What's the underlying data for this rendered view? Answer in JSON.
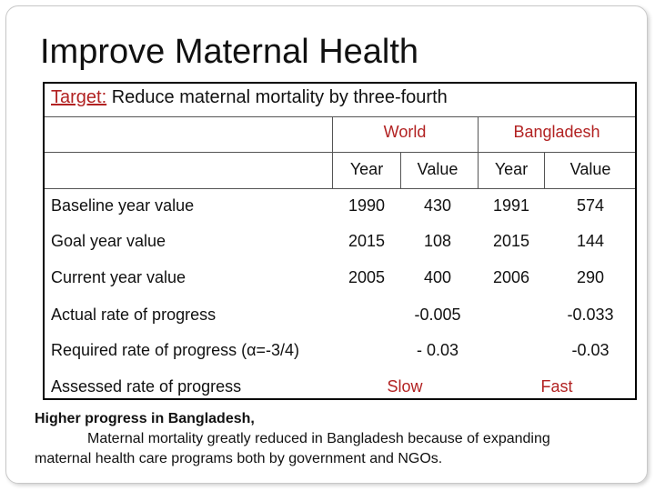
{
  "title": "Improve Maternal Health",
  "target": {
    "label": "Target:",
    "text": " Reduce maternal mortality by three-fourth"
  },
  "columns": {
    "world": "World",
    "bangladesh": "Bangladesh",
    "year": "Year",
    "value": "Value"
  },
  "rows": [
    {
      "label": "Baseline year value",
      "w_year": "1990",
      "w_value": "430",
      "b_year": "1991",
      "b_value": "574"
    },
    {
      "label": "Goal year value",
      "w_year": "2015",
      "w_value": "108",
      "b_year": "2015",
      "b_value": "144"
    },
    {
      "label": "Current year value",
      "w_year": "2005",
      "w_value": "400",
      "b_year": "2006",
      "b_value": "290"
    }
  ],
  "rates": [
    {
      "label": "Actual rate of progress",
      "world": "-0.005",
      "bangladesh": "-0.033"
    },
    {
      "label": "Required rate of progress (α=-3/4)",
      "world": "- 0.03",
      "bangladesh": "-0.03"
    },
    {
      "label": "Assessed rate of progress",
      "world": "Slow",
      "bangladesh": "Fast"
    }
  ],
  "footer": {
    "line1": "Higher progress in Bangladesh,",
    "line2": "Maternal mortality greatly reduced in Bangladesh because of expanding",
    "line3": "maternal health care programs both by government and NGOs."
  },
  "colors": {
    "accent": "#b22222",
    "border": "#000000",
    "grid": "#555555"
  }
}
